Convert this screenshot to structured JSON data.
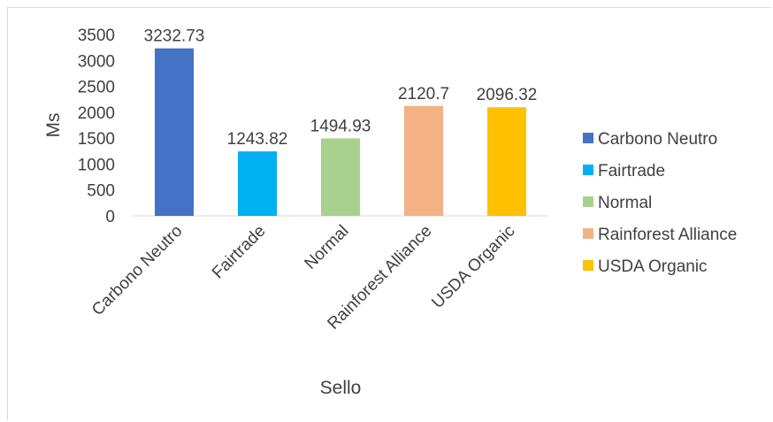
{
  "chart_data": {
    "type": "bar",
    "categories": [
      "Carbono Neutro",
      "Fairtrade",
      "Normal",
      "Rainforest Alliance",
      "USDA Organic"
    ],
    "values": [
      3232.73,
      1243.82,
      1494.93,
      2120.7,
      2096.32
    ],
    "data_labels": [
      "3232.73",
      "1243.82",
      "1494.93",
      "2120.7",
      "2096.32"
    ],
    "colors": [
      "#4472c4",
      "#00b0f0",
      "#a9d18e",
      "#f4b183",
      "#ffc000"
    ],
    "xlabel": "Sello",
    "ylabel": "Ms",
    "ylim": [
      0,
      3500
    ],
    "yticks": [
      "0",
      "500",
      "1000",
      "1500",
      "2000",
      "2500",
      "3000",
      "3500"
    ],
    "grid": false,
    "legend": {
      "placement": "right",
      "entries": [
        "Carbono Neutro",
        "Fairtrade",
        "Normal",
        "Rainforest Alliance",
        "USDA Organic"
      ]
    }
  }
}
